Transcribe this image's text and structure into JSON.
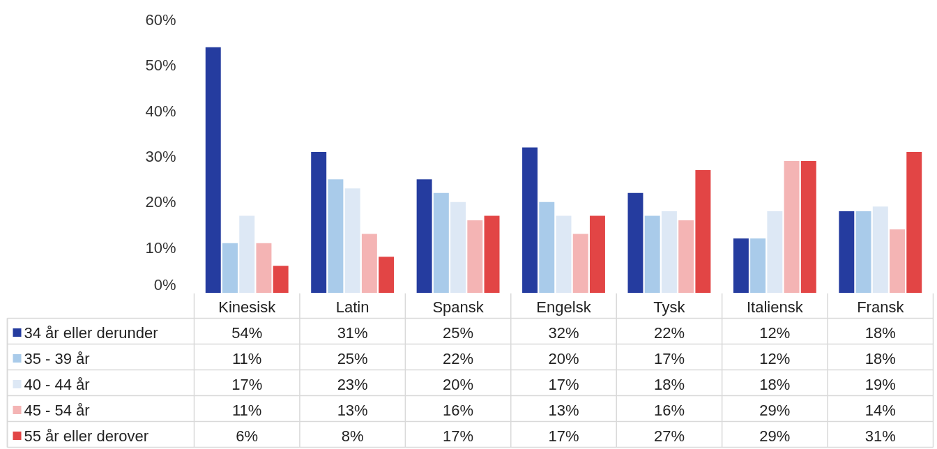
{
  "chart_data": {
    "type": "bar",
    "categories": [
      "Kinesisk",
      "Latin",
      "Spansk",
      "Engelsk",
      "Tysk",
      "Italiensk",
      "Fransk"
    ],
    "series": [
      {
        "name": "34 år eller derunder",
        "color": "#253c9f",
        "values": [
          54,
          31,
          25,
          32,
          22,
          12,
          18
        ],
        "value_labels": [
          "54%",
          "31%",
          "25%",
          "32%",
          "22%",
          "12%",
          "18%"
        ]
      },
      {
        "name": "35 - 39 år",
        "color": "#a9cbea",
        "values": [
          11,
          25,
          22,
          20,
          17,
          12,
          18
        ],
        "value_labels": [
          "11%",
          "25%",
          "22%",
          "20%",
          "17%",
          "12%",
          "18%"
        ]
      },
      {
        "name": "40 - 44 år",
        "color": "#dde8f5",
        "values": [
          17,
          23,
          20,
          17,
          18,
          18,
          19
        ],
        "value_labels": [
          "17%",
          "23%",
          "20%",
          "17%",
          "18%",
          "18%",
          "19%"
        ]
      },
      {
        "name": "45 - 54 år",
        "color": "#f4b4b4",
        "values": [
          11,
          13,
          16,
          13,
          16,
          29,
          14
        ],
        "value_labels": [
          "11%",
          "13%",
          "16%",
          "13%",
          "16%",
          "29%",
          "14%"
        ]
      },
      {
        "name": "55 år eller derover",
        "color": "#e24545",
        "values": [
          6,
          8,
          17,
          17,
          27,
          29,
          31
        ],
        "value_labels": [
          "6%",
          "8%",
          "17%",
          "17%",
          "27%",
          "29%",
          "31%"
        ]
      }
    ],
    "ylim": [
      0,
      60
    ],
    "yticks": [
      {
        "value": 0,
        "label": "0%"
      },
      {
        "value": 10,
        "label": "10%"
      },
      {
        "value": 20,
        "label": "20%"
      },
      {
        "value": 30,
        "label": "30%"
      },
      {
        "value": 40,
        "label": "40%"
      },
      {
        "value": 50,
        "label": "50%"
      },
      {
        "value": 60,
        "label": "60%"
      }
    ],
    "grid": false,
    "legend": "bottom"
  }
}
